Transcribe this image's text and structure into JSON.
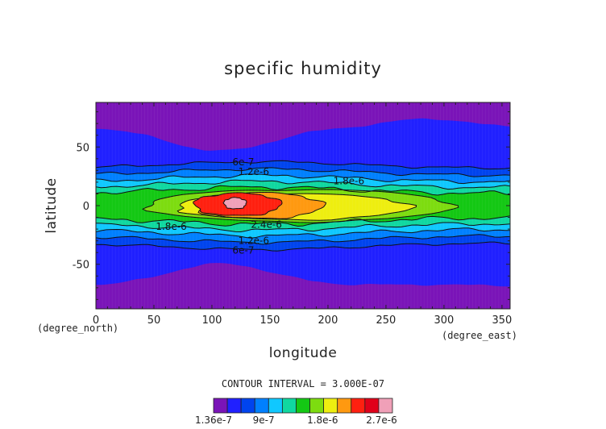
{
  "chart_data": {
    "type": "contour",
    "title": "specific humidity",
    "xlabel": "longitude",
    "ylabel": "latitude",
    "x_unit": "(degree_east)",
    "y_unit": "(degree_north)",
    "xlim": [
      0,
      357
    ],
    "ylim": [
      -88,
      88
    ],
    "x_ticks": [
      0,
      50,
      100,
      150,
      200,
      250,
      300,
      350
    ],
    "y_ticks": [
      -50,
      0,
      50
    ],
    "contour_interval_text": "CONTOUR INTERVAL = 3.000E-07",
    "contour_labels": [
      {
        "text": "6e-7",
        "x": 127,
        "y": 37
      },
      {
        "text": "1.2e-6",
        "x": 136,
        "y": 29
      },
      {
        "text": "1.8e-6",
        "x": 218,
        "y": 21
      },
      {
        "text": "1.8e-6",
        "x": 65,
        "y": -18
      },
      {
        "text": "2.4e-6",
        "x": 147,
        "y": -16
      },
      {
        "text": "1.2e-6",
        "x": 136,
        "y": -30
      },
      {
        "text": "6e-7",
        "x": 127,
        "y": -38
      }
    ],
    "colorbar": {
      "colors": [
        "#7a14b8",
        "#2020ff",
        "#0044ee",
        "#0080ff",
        "#10c8ff",
        "#10d8a0",
        "#14c814",
        "#7ddc10",
        "#eeee10",
        "#ff9910",
        "#ff2010",
        "#e0001a",
        "#f0a0b8"
      ],
      "tick_labels": [
        "1.36e-7",
        "9e-7",
        "1.8e-6",
        "2.7e-6"
      ],
      "tick_values": [
        1.36e-07,
        9e-07,
        1.8e-06,
        2.7e-06
      ]
    },
    "grid": false
  }
}
